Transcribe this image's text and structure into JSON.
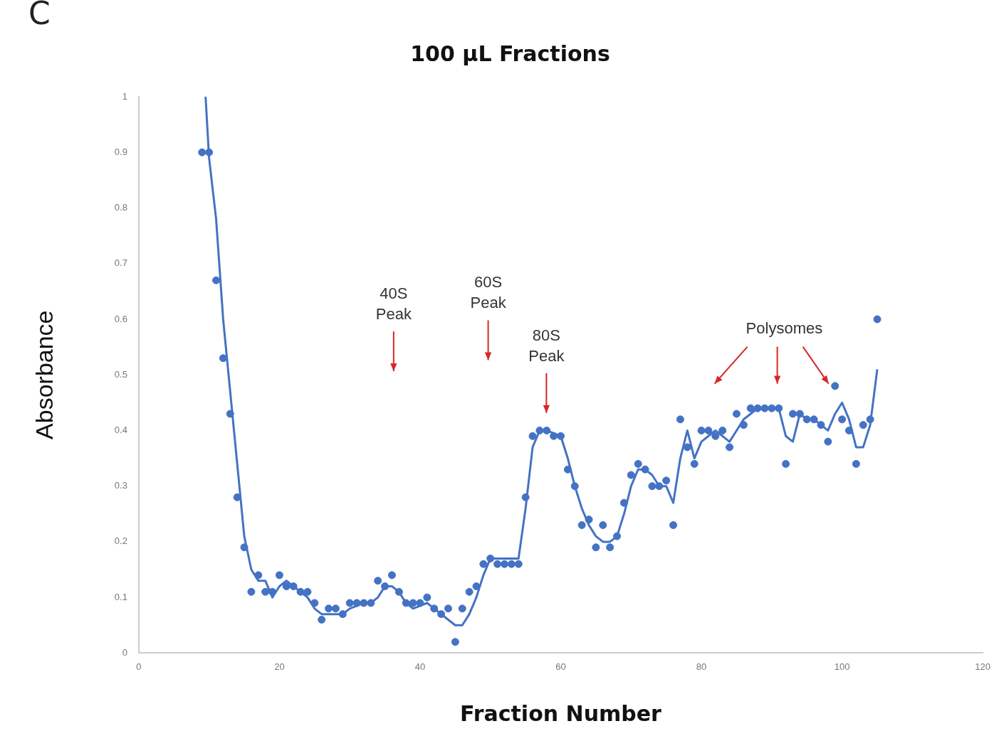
{
  "chart_data": {
    "type": "scatter",
    "title": "100 µL Fractions",
    "xlabel": "Fraction Number",
    "ylabel": "Absorbance",
    "xlim": [
      0,
      120
    ],
    "xticks": [
      0,
      20,
      40,
      60,
      80,
      100,
      120
    ],
    "ylim": [
      0,
      1
    ],
    "yticks": [
      0,
      0.1,
      0.2,
      0.3,
      0.4,
      0.5,
      0.6,
      0.7,
      0.8,
      0.9,
      1
    ],
    "grid": false,
    "legend": false,
    "marker": "circle",
    "series": [
      {
        "type": "scatter",
        "color": "#4472c4",
        "x": [
          9,
          10,
          11,
          12,
          13,
          14,
          15,
          16,
          17,
          18,
          19,
          20,
          21,
          22,
          23,
          24,
          25,
          26,
          27,
          28,
          29,
          30,
          31,
          32,
          33,
          34,
          35,
          36,
          37,
          38,
          39,
          40,
          41,
          42,
          43,
          44,
          45,
          46,
          47,
          48,
          49,
          50,
          51,
          52,
          53,
          54,
          55,
          56,
          57,
          58,
          59,
          60,
          61,
          62,
          63,
          64,
          65,
          66,
          67,
          68,
          69,
          70,
          71,
          72,
          73,
          74,
          75,
          76,
          77,
          78,
          79,
          80,
          81,
          82,
          83,
          84,
          85,
          86,
          87,
          88,
          89,
          90,
          91,
          92,
          93,
          94,
          95,
          96,
          97,
          98,
          99,
          100,
          101,
          102,
          103,
          104,
          105
        ],
        "values": [
          0.9,
          0.9,
          0.67,
          0.53,
          0.43,
          0.28,
          0.19,
          0.11,
          0.14,
          0.11,
          0.11,
          0.14,
          0.12,
          0.12,
          0.11,
          0.11,
          0.09,
          0.06,
          0.08,
          0.08,
          0.07,
          0.09,
          0.09,
          0.09,
          0.09,
          0.13,
          0.12,
          0.14,
          0.11,
          0.09,
          0.09,
          0.09,
          0.1,
          0.08,
          0.07,
          0.08,
          0.02,
          0.08,
          0.11,
          0.12,
          0.16,
          0.17,
          0.16,
          0.16,
          0.16,
          0.16,
          0.28,
          0.39,
          0.4,
          0.4,
          0.39,
          0.39,
          0.33,
          0.3,
          0.23,
          0.24,
          0.19,
          0.23,
          0.19,
          0.21,
          0.27,
          0.32,
          0.34,
          0.33,
          0.3,
          0.3,
          0.31,
          0.23,
          0.42,
          0.37,
          0.34,
          0.4,
          0.4,
          0.39,
          0.4,
          0.37,
          0.43,
          0.41,
          0.44,
          0.44,
          0.44,
          0.44,
          0.44,
          0.34,
          0.43,
          0.43,
          0.42,
          0.42,
          0.41,
          0.38,
          0.48,
          0.42,
          0.4,
          0.34,
          0.41,
          0.42,
          0.6
        ]
      },
      {
        "type": "line",
        "color": "#4472c4",
        "marker": "none",
        "x": [
          9.5,
          10,
          11,
          12,
          13,
          14,
          15,
          16,
          17,
          18,
          19,
          20,
          21,
          23,
          24,
          25,
          26,
          27,
          28,
          29,
          30,
          32,
          33,
          34,
          35,
          36,
          37,
          38,
          39,
          41,
          42,
          43,
          44,
          45,
          46,
          47,
          48,
          49,
          50,
          54,
          55,
          56,
          57,
          58,
          60,
          61,
          62,
          63,
          64,
          65,
          66,
          67,
          68,
          69,
          70,
          71,
          72,
          73,
          74,
          75,
          76,
          77,
          78,
          79,
          80,
          81,
          82,
          83,
          84,
          85,
          86,
          87,
          88,
          89,
          90,
          91,
          92,
          93,
          94,
          95,
          96,
          97,
          98,
          99,
          100,
          101,
          102,
          103,
          104,
          105
        ],
        "values": [
          1,
          0.89,
          0.78,
          0.6,
          0.47,
          0.34,
          0.21,
          0.15,
          0.13,
          0.13,
          0.1,
          0.12,
          0.13,
          0.11,
          0.1,
          0.08,
          0.07,
          0.07,
          0.07,
          0.07,
          0.08,
          0.09,
          0.09,
          0.1,
          0.12,
          0.12,
          0.11,
          0.09,
          0.08,
          0.09,
          0.08,
          0.07,
          0.06,
          0.05,
          0.05,
          0.07,
          0.1,
          0.14,
          0.17,
          0.17,
          0.26,
          0.37,
          0.4,
          0.4,
          0.39,
          0.35,
          0.3,
          0.26,
          0.23,
          0.21,
          0.2,
          0.2,
          0.21,
          0.25,
          0.3,
          0.33,
          0.33,
          0.32,
          0.3,
          0.3,
          0.27,
          0.35,
          0.4,
          0.35,
          0.38,
          0.39,
          0.4,
          0.39,
          0.38,
          0.4,
          0.42,
          0.43,
          0.44,
          0.44,
          0.44,
          0.44,
          0.39,
          0.38,
          0.43,
          0.42,
          0.42,
          0.41,
          0.4,
          0.43,
          0.45,
          0.42,
          0.37,
          0.37,
          0.41,
          0.51
        ]
      }
    ],
    "annotations": [
      "C",
      "40S Peak",
      "60S Peak",
      "80S Peak",
      "Polysomes"
    ]
  }
}
